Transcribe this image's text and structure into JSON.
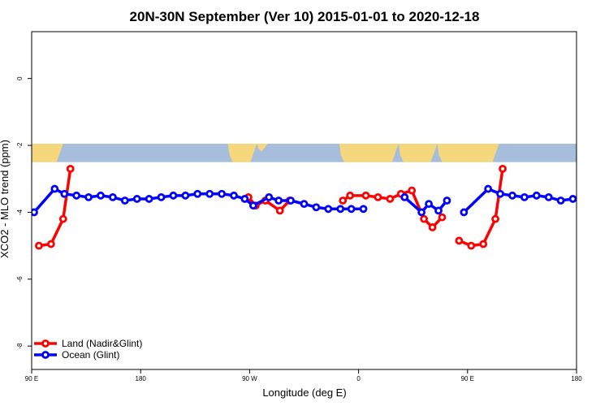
{
  "chart_data": {
    "type": "line",
    "title": "20N-30N September (Ver 10)   2015-01-01 to 2020-12-18",
    "xlabel": "Longitude (deg E)",
    "ylabel": "XCO2 - MLO trend (ppm)",
    "xlim": [
      90,
      540
    ],
    "ylim": [
      -8.7,
      1.4
    ],
    "x_ticks": [
      {
        "value": 90,
        "label": "90 E"
      },
      {
        "value": 180,
        "label": "180"
      },
      {
        "value": 270,
        "label": "90 W"
      },
      {
        "value": 360,
        "label": "0"
      },
      {
        "value": 450,
        "label": "90 E"
      },
      {
        "value": 540,
        "label": "180"
      }
    ],
    "y_ticks": [
      {
        "value": 0,
        "label": "0"
      },
      {
        "value": -2,
        "label": "-2"
      },
      {
        "value": -4,
        "label": "-4"
      },
      {
        "value": -6,
        "label": "-6"
      },
      {
        "value": -8,
        "label": "-8"
      }
    ],
    "map_strip": {
      "y_top": -1.95,
      "y_bottom": -2.5,
      "ocean_color": "#a6bddb",
      "land_color": "#f5d77d"
    },
    "legend_position": "bottom-left",
    "series": [
      {
        "name": "Land (Nadir&Glint)",
        "color": "#ff0000",
        "segments": [
          [
            [
              96,
              -5.0
            ],
            [
              106,
              -4.95
            ],
            [
              116,
              -4.2
            ],
            [
              122,
              -2.7
            ]
          ],
          [
            [
              269,
              -3.55
            ],
            [
              275,
              -3.8
            ],
            [
              283,
              -3.65
            ],
            [
              295,
              -3.95
            ],
            [
              303,
              -3.65
            ]
          ],
          [
            [
              347,
              -3.65
            ],
            [
              353,
              -3.5
            ],
            [
              366,
              -3.5
            ],
            [
              376,
              -3.55
            ],
            [
              386,
              -3.6
            ],
            [
              395,
              -3.45
            ],
            [
              404,
              -3.35
            ],
            [
              414,
              -4.2
            ],
            [
              421,
              -4.45
            ],
            [
              429,
              -4.15
            ]
          ],
          [
            [
              443,
              -4.85
            ],
            [
              453,
              -5.0
            ],
            [
              463,
              -4.95
            ],
            [
              473,
              -4.2
            ],
            [
              479,
              -2.7
            ]
          ]
        ]
      },
      {
        "name": "Ocean (Glint)",
        "color": "#0000ff",
        "segments": [
          [
            [
              92,
              -4.0
            ],
            [
              109,
              -3.3
            ],
            [
              117,
              -3.45
            ],
            [
              127,
              -3.5
            ],
            [
              137,
              -3.55
            ],
            [
              147,
              -3.5
            ],
            [
              157,
              -3.55
            ],
            [
              167,
              -3.65
            ],
            [
              177,
              -3.6
            ],
            [
              187,
              -3.6
            ],
            [
              197,
              -3.55
            ],
            [
              207,
              -3.5
            ],
            [
              217,
              -3.5
            ],
            [
              227,
              -3.45
            ],
            [
              237,
              -3.45
            ],
            [
              247,
              -3.45
            ],
            [
              257,
              -3.5
            ],
            [
              266,
              -3.6
            ],
            [
              273,
              -3.8
            ],
            [
              286,
              -3.55
            ],
            [
              294,
              -3.65
            ],
            [
              304,
              -3.65
            ],
            [
              315,
              -3.75
            ],
            [
              325,
              -3.85
            ],
            [
              335,
              -3.9
            ],
            [
              345,
              -3.9
            ],
            [
              354,
              -3.9
            ],
            [
              364,
              -3.9
            ]
          ],
          [
            [
              398,
              -3.55
            ],
            [
              412,
              -4.0
            ],
            [
              418,
              -3.75
            ],
            [
              426,
              -3.95
            ],
            [
              433,
              -3.65
            ]
          ],
          [
            [
              447,
              -4.0
            ],
            [
              467,
              -3.3
            ],
            [
              477,
              -3.45
            ],
            [
              487,
              -3.5
            ],
            [
              497,
              -3.55
            ],
            [
              507,
              -3.5
            ],
            [
              517,
              -3.55
            ],
            [
              527,
              -3.65
            ],
            [
              537,
              -3.6
            ]
          ]
        ]
      }
    ]
  }
}
